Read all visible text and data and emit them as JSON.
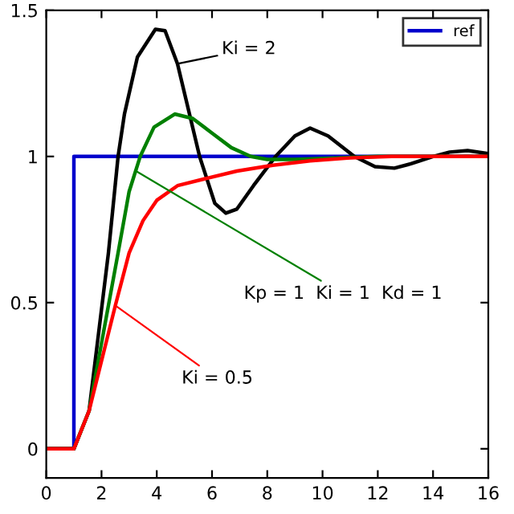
{
  "chart_data": {
    "type": "line",
    "xlim": [
      0,
      16
    ],
    "ylim": [
      -0.1,
      1.5
    ],
    "xticks": [
      0,
      2,
      4,
      6,
      8,
      10,
      12,
      14,
      16
    ],
    "yticks": [
      0,
      0.5,
      1,
      1.5
    ],
    "grid": false,
    "legend": "top right",
    "marker": "none",
    "line_style": "solid",
    "series": [
      {
        "name": "ref",
        "color": "#0000cc",
        "x": [
          0,
          1,
          1,
          16
        ],
        "values": [
          0,
          0,
          1,
          1
        ]
      },
      {
        "color": "#000000",
        "x": [
          0,
          1,
          1.55,
          2.25,
          2.6,
          2.83,
          3.3,
          3.95,
          4.3,
          4.75,
          5.55,
          6.1,
          6.5,
          6.9,
          7.5,
          8.3,
          9.0,
          9.55,
          10.2,
          11.15,
          11.9,
          12.6,
          13.2,
          14.0,
          14.6,
          15.25,
          16
        ],
        "values": [
          0,
          0,
          0.13,
          0.67,
          1.0,
          1.145,
          1.34,
          1.435,
          1.43,
          1.317,
          1.0,
          0.84,
          0.806,
          0.82,
          0.9,
          1.0,
          1.07,
          1.097,
          1.07,
          1.0,
          0.965,
          0.96,
          0.975,
          1.0,
          1.015,
          1.02,
          1.01
        ]
      },
      {
        "color": "#008000",
        "x": [
          0,
          1,
          1.55,
          2.6,
          3.0,
          3.4,
          3.9,
          4.65,
          5.3,
          6.0,
          6.7,
          7.4,
          8.0,
          9.0,
          10.5,
          12,
          16
        ],
        "values": [
          0,
          0,
          0.13,
          0.67,
          0.88,
          1.0,
          1.1,
          1.145,
          1.13,
          1.08,
          1.03,
          1.0,
          0.99,
          0.99,
          0.995,
          1.0,
          1.0
        ]
      },
      {
        "color": "#ff0000",
        "x": [
          0,
          1,
          1.55,
          2.5,
          3.0,
          3.5,
          4.0,
          4.75,
          5.8,
          6.9,
          8.2,
          9.55,
          11,
          12.5,
          16
        ],
        "values": [
          0,
          0,
          0.13,
          0.49,
          0.67,
          0.78,
          0.85,
          0.9,
          0.925,
          0.95,
          0.97,
          0.985,
          0.995,
          1.0,
          1.0
        ]
      }
    ],
    "annotations": [
      {
        "text": "Ki = 2",
        "x": 4.75,
        "y": 1.317
      },
      {
        "text": "Kp = 1  Ki = 1  Kd = 1",
        "x": 3.25,
        "y": 0.95
      },
      {
        "text": "Ki = 0.5",
        "x": 2.5,
        "y": 0.49
      }
    ]
  }
}
